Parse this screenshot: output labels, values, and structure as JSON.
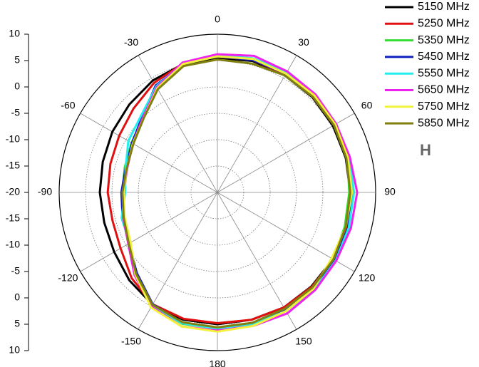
{
  "chart_data": {
    "type": "polar",
    "x": [
      0,
      15,
      30,
      45,
      60,
      75,
      90,
      105,
      120,
      135,
      150,
      165,
      180,
      195,
      210,
      225,
      240,
      255,
      270,
      285,
      300,
      315,
      330,
      345
    ],
    "series": [
      {
        "name": "5150 MHz",
        "color": "#000000",
        "values": [
          5.5,
          5.8,
          5.6,
          5.5,
          5.3,
          5.2,
          5.2,
          5.3,
          5.3,
          5.2,
          5.2,
          5.0,
          5.0,
          5.0,
          4.6,
          3.6,
          2.6,
          2.2,
          2.3,
          2.5,
          3.0,
          3.6,
          4.5,
          5.2
        ]
      },
      {
        "name": "5250 MHz",
        "color": "#e01010",
        "values": [
          5.8,
          6.0,
          5.8,
          5.6,
          5.5,
          5.4,
          5.4,
          5.5,
          5.4,
          5.3,
          5.2,
          5.0,
          4.8,
          4.8,
          4.5,
          3.0,
          1.2,
          0.6,
          0.8,
          1.0,
          1.5,
          2.5,
          4.0,
          5.3
        ]
      },
      {
        "name": "5350 MHz",
        "color": "#33dd33",
        "values": [
          6.0,
          6.3,
          6.0,
          6.0,
          5.8,
          5.5,
          5.0,
          5.0,
          5.3,
          5.5,
          5.6,
          5.6,
          5.8,
          5.8,
          4.7,
          1.8,
          -0.8,
          -1.6,
          -2.0,
          -1.8,
          -1.2,
          0.0,
          3.0,
          5.2
        ]
      },
      {
        "name": "5450 MHz",
        "color": "#1020c0",
        "values": [
          5.8,
          6.0,
          6.0,
          5.9,
          5.6,
          5.4,
          5.6,
          5.7,
          5.6,
          5.6,
          5.8,
          5.8,
          5.8,
          5.6,
          4.5,
          1.6,
          -0.6,
          -1.4,
          -1.8,
          -2.0,
          -1.3,
          0.2,
          3.4,
          5.2
        ]
      },
      {
        "name": "5550 MHz",
        "color": "#22eeee",
        "values": [
          6.0,
          6.3,
          6.4,
          6.2,
          6.0,
          5.9,
          5.9,
          5.8,
          5.9,
          6.0,
          6.0,
          5.9,
          5.8,
          5.7,
          4.7,
          2.0,
          -0.8,
          -1.2,
          -2.5,
          -2.0,
          -0.5,
          0.5,
          3.2,
          5.4
        ]
      },
      {
        "name": "5650 MHz",
        "color": "#ee22ee",
        "values": [
          6.2,
          6.8,
          6.5,
          6.3,
          6.0,
          6.0,
          6.5,
          6.2,
          6.0,
          6.2,
          6.5,
          6.2,
          6.2,
          6.3,
          5.0,
          2.2,
          -0.5,
          -1.5,
          -2.2,
          -2.3,
          -1.5,
          0.0,
          3.0,
          5.5
        ]
      },
      {
        "name": "5750 MHz",
        "color": "#f2f23a",
        "values": [
          5.8,
          6.2,
          6.0,
          6.0,
          5.8,
          5.6,
          5.5,
          5.2,
          5.0,
          5.8,
          6.0,
          6.2,
          6.4,
          6.3,
          5.2,
          2.0,
          -1.0,
          -1.8,
          -2.2,
          -2.2,
          -1.5,
          -0.2,
          2.8,
          5.2
        ]
      },
      {
        "name": "5850 MHz",
        "color": "#808010",
        "values": [
          5.2,
          5.3,
          5.6,
          5.6,
          5.5,
          5.3,
          5.2,
          5.2,
          5.4,
          5.5,
          5.5,
          5.6,
          5.6,
          5.5,
          4.6,
          1.8,
          -0.6,
          -1.6,
          -2.0,
          -2.2,
          -1.6,
          -0.2,
          2.6,
          4.8
        ]
      }
    ],
    "ylim": [
      -20,
      10
    ],
    "yticks": [
      -20,
      -15,
      -10,
      -5,
      0,
      5,
      10
    ],
    "xticks": [
      0,
      30,
      60,
      90,
      120,
      150,
      180,
      -150,
      -120,
      -90,
      -60,
      -30
    ],
    "grid": true,
    "annotation": "H"
  }
}
